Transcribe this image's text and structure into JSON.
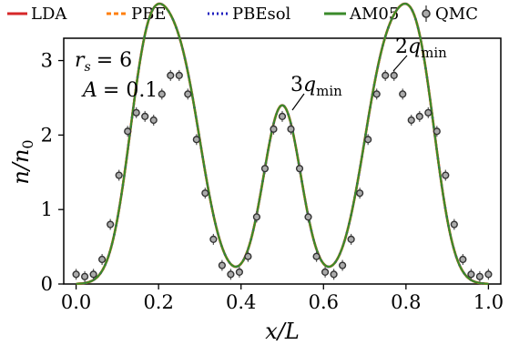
{
  "chart_data": {
    "type": "line",
    "xlabel": "x/L",
    "ylabel": "n/n0",
    "xlim": [
      -0.03,
      1.03
    ],
    "ylim": [
      0,
      3.3
    ],
    "xticks": [
      "0.0",
      "0.2",
      "0.4",
      "0.6",
      "0.8",
      "1.0"
    ],
    "yticks": [
      "0",
      "1",
      "2",
      "3"
    ],
    "legend_position": "top, above plot",
    "legend": [
      "LDA",
      "PBE",
      "PBEsol",
      "AM05",
      "QMC"
    ],
    "annotations": {
      "param1_var": "r",
      "param1_sub": "s",
      "param1_value": "= 6",
      "param2_var": "A",
      "param2_value": "= 0.1",
      "peak_label_3q_coef": "3",
      "peak_label_3q_var": "q",
      "peak_label_3q_sub": "min",
      "peak_label_2q_coef": "2",
      "peak_label_2q_var": "q",
      "peak_label_2q_sub": "min"
    },
    "series": [
      {
        "name": "LDA",
        "color": "#d62728",
        "style": "solid",
        "kind": "line"
      },
      {
        "name": "PBE",
        "color": "#ff7f0e",
        "style": "dashed",
        "kind": "line"
      },
      {
        "name": "PBEsol",
        "color": "#1f1fbf",
        "style": "dotted",
        "kind": "line"
      },
      {
        "name": "AM05",
        "color": "#3a8a2a",
        "style": "solid",
        "kind": "line"
      },
      {
        "name": "QMC",
        "color": "#555555",
        "style": "markers",
        "kind": "scatter"
      }
    ],
    "curve_model": {
      "components": [
        {
          "center": 0.167,
          "amplitude": 2.43,
          "width": 0.045
        },
        {
          "center": 0.25,
          "amplitude": 2.88,
          "width": 0.055
        },
        {
          "center": 0.5,
          "amplitude": 2.4,
          "width": 0.045
        },
        {
          "center": 0.75,
          "amplitude": 2.88,
          "width": 0.055
        },
        {
          "center": 0.833,
          "amplitude": 2.43,
          "width": 0.045
        }
      ]
    },
    "qmc_points": [
      [
        0.0,
        0.13
      ],
      [
        0.021,
        0.1
      ],
      [
        0.042,
        0.13
      ],
      [
        0.063,
        0.33
      ],
      [
        0.083,
        0.8
      ],
      [
        0.104,
        1.46
      ],
      [
        0.125,
        2.05
      ],
      [
        0.146,
        2.3
      ],
      [
        0.167,
        2.25
      ],
      [
        0.188,
        2.2
      ],
      [
        0.208,
        2.55
      ],
      [
        0.229,
        2.8
      ],
      [
        0.25,
        2.8
      ],
      [
        0.271,
        2.55
      ],
      [
        0.292,
        1.94
      ],
      [
        0.313,
        1.22
      ],
      [
        0.333,
        0.6
      ],
      [
        0.354,
        0.25
      ],
      [
        0.375,
        0.13
      ],
      [
        0.396,
        0.16
      ],
      [
        0.417,
        0.37
      ],
      [
        0.438,
        0.9
      ],
      [
        0.458,
        1.55
      ],
      [
        0.479,
        2.08
      ],
      [
        0.5,
        2.25
      ],
      [
        0.521,
        2.08
      ],
      [
        0.542,
        1.55
      ],
      [
        0.563,
        0.9
      ],
      [
        0.583,
        0.37
      ],
      [
        0.604,
        0.16
      ],
      [
        0.625,
        0.13
      ],
      [
        0.646,
        0.25
      ],
      [
        0.667,
        0.6
      ],
      [
        0.688,
        1.22
      ],
      [
        0.708,
        1.94
      ],
      [
        0.729,
        2.55
      ],
      [
        0.75,
        2.8
      ],
      [
        0.771,
        2.8
      ],
      [
        0.792,
        2.55
      ],
      [
        0.813,
        2.2
      ],
      [
        0.833,
        2.25
      ],
      [
        0.854,
        2.3
      ],
      [
        0.875,
        2.05
      ],
      [
        0.896,
        1.46
      ],
      [
        0.917,
        0.8
      ],
      [
        0.938,
        0.33
      ],
      [
        0.958,
        0.13
      ],
      [
        0.979,
        0.1
      ],
      [
        1.0,
        0.13
      ]
    ]
  }
}
